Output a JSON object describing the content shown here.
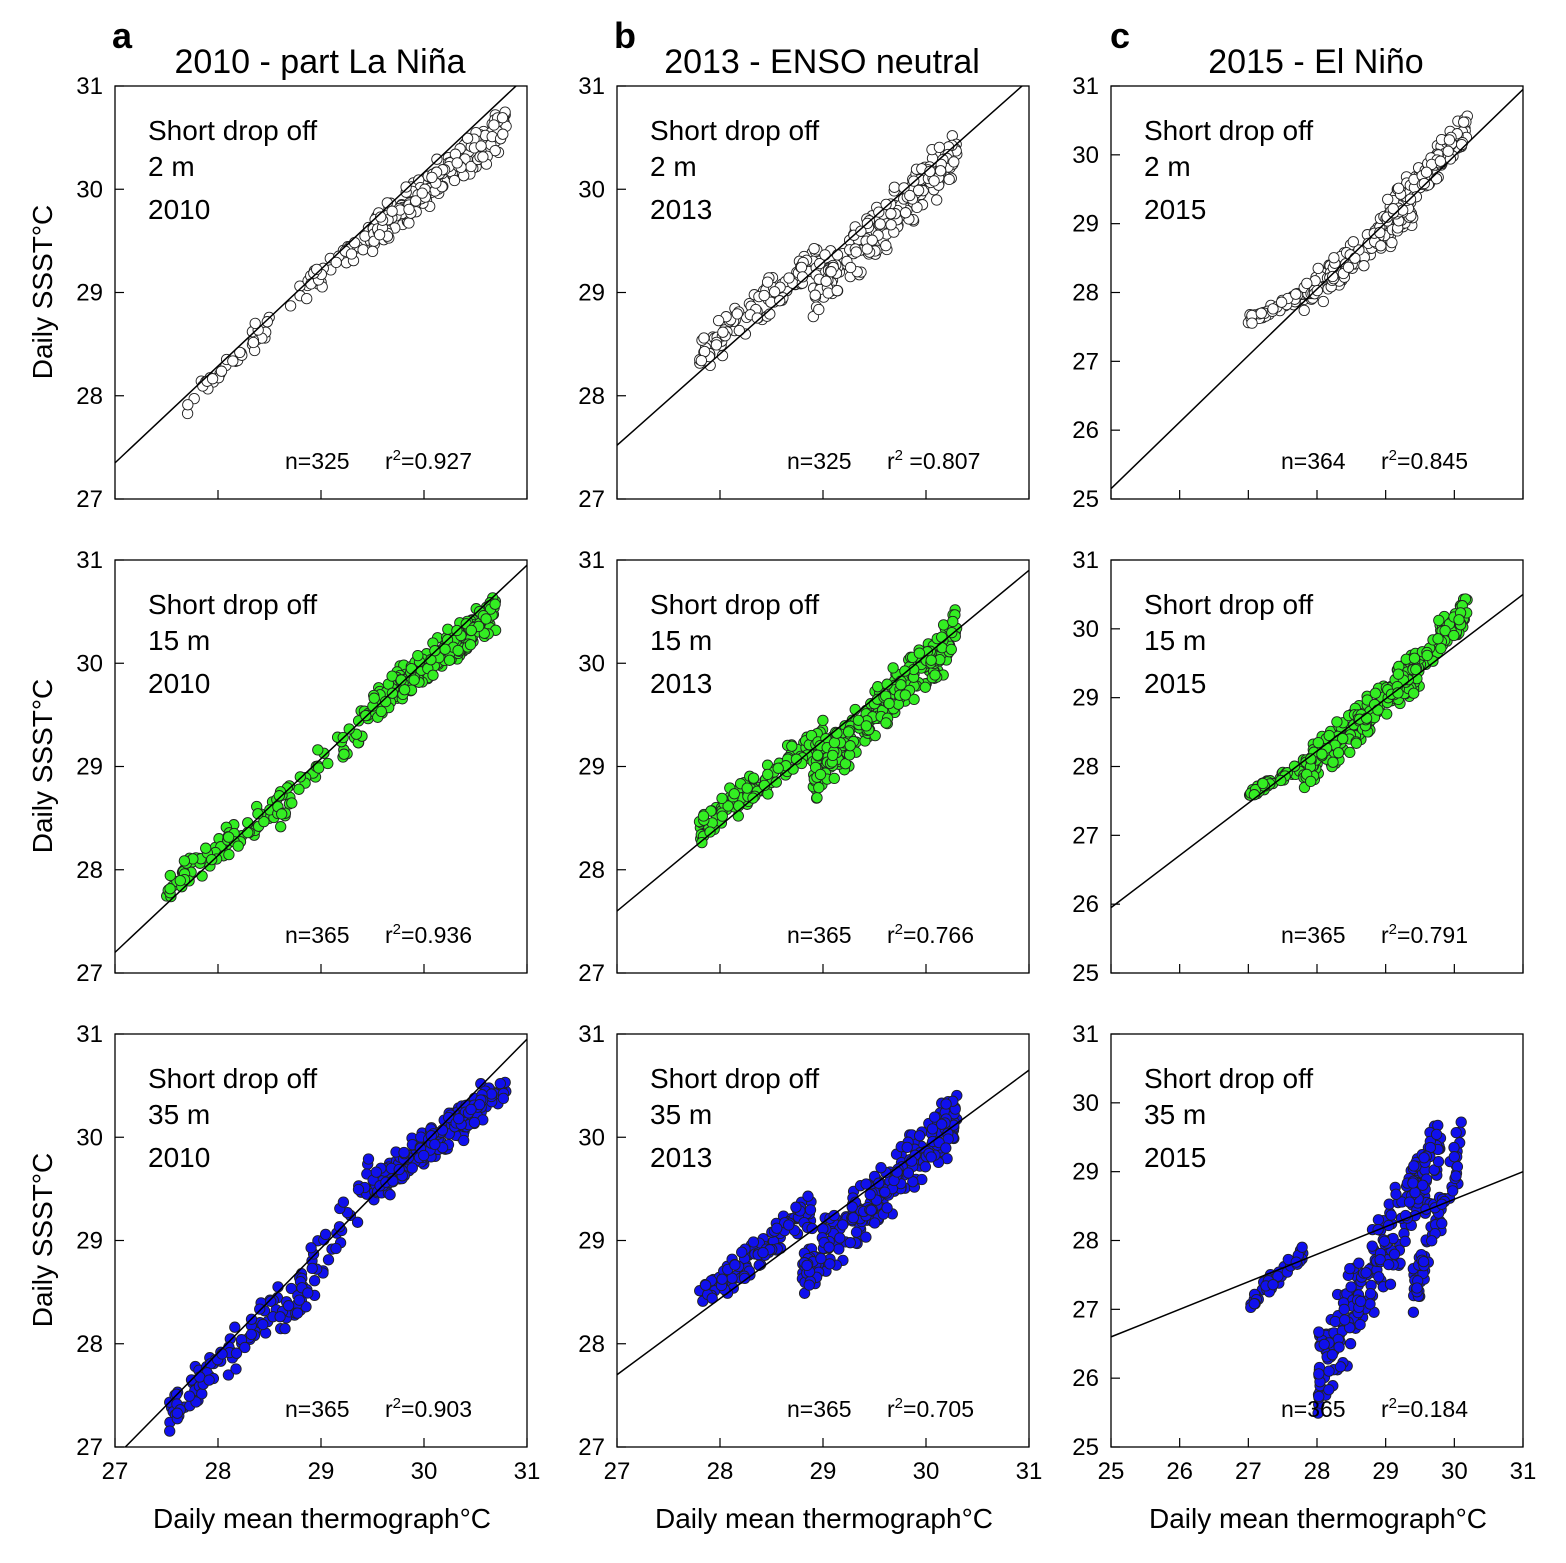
{
  "figure": {
    "columns": [
      {
        "letter": "a",
        "title": "2010 - part La Niña",
        "xlabel": "Daily mean thermograph°C"
      },
      {
        "letter": "b",
        "title": "2013 - ENSO neutral",
        "xlabel": "Daily mean thermograph°C"
      },
      {
        "letter": "c",
        "title": "2015 - El Niño",
        "xlabel": "Daily mean thermograph°C"
      }
    ],
    "ylabel": "Daily SSST°C",
    "colors": {
      "depth_2m": "#ffffff",
      "depth_15m": "#33ee22",
      "depth_35m": "#1010ee",
      "marker_edge": "#222222",
      "line": "#000000"
    }
  },
  "chart_data": [
    {
      "type": "scatter",
      "site": "Short drop off",
      "depth": "2 m",
      "year": "2010",
      "n": "n=325",
      "r2": "0.927",
      "r2_prefix": "r",
      "r2_exp": "2",
      "r2_eq": "=0.927",
      "xlim": [
        27,
        31
      ],
      "ylim": [
        27,
        31
      ],
      "xticks": [
        27,
        28,
        29,
        30,
        31
      ],
      "yticks": [
        27,
        28,
        29,
        30,
        31
      ],
      "fit_line": [
        [
          27,
          27.35
        ],
        [
          31,
          31.1
        ]
      ],
      "clusters": [
        {
          "x": [
            27.7,
            28.5
          ],
          "y": [
            27.9,
            28.7
          ],
          "count": 40
        },
        {
          "x": [
            28.7,
            29.5
          ],
          "y": [
            28.9,
            29.6
          ],
          "count": 45
        },
        {
          "x": [
            29.5,
            30.8
          ],
          "y": [
            29.6,
            30.6
          ],
          "count": 240
        }
      ]
    },
    {
      "type": "scatter",
      "site": "Short drop off",
      "depth": "2 m",
      "year": "2013",
      "n": "n=325",
      "r2": "0.807",
      "r2_prefix": "r",
      "r2_exp": "2",
      "r2_eq": " =0.807",
      "xlim": [
        27,
        31
      ],
      "ylim": [
        27,
        31
      ],
      "xticks": [
        27,
        28,
        29,
        30,
        31
      ],
      "yticks": [
        27,
        28,
        29,
        30,
        31
      ],
      "fit_line": [
        [
          27,
          27.52
        ],
        [
          31,
          31.06
        ]
      ],
      "clusters": [
        {
          "x": [
            27.8,
            29.0
          ],
          "y": [
            28.4,
            29.4
          ],
          "count": 110
        },
        {
          "x": [
            28.9,
            30.3
          ],
          "y": [
            29.0,
            30.35
          ],
          "count": 215
        }
      ]
    },
    {
      "type": "scatter",
      "site": "Short drop off",
      "depth": "2 m",
      "year": "2015",
      "n": "n=364",
      "r2": "0.845",
      "r2_prefix": "r",
      "r2_exp": "2",
      "r2_eq": "=0.845",
      "xlim": [
        25,
        31
      ],
      "ylim": [
        25,
        31
      ],
      "xticks": [
        25,
        26,
        27,
        28,
        29,
        30,
        31
      ],
      "yticks": [
        25,
        26,
        27,
        28,
        29,
        30,
        31
      ],
      "fit_line": [
        [
          25,
          25.15
        ],
        [
          31,
          30.95
        ]
      ],
      "clusters": [
        {
          "x": [
            27.0,
            27.9
          ],
          "y": [
            27.6,
            28.0
          ],
          "count": 60
        },
        {
          "x": [
            27.8,
            29.4
          ],
          "y": [
            27.9,
            29.2
          ],
          "count": 170
        },
        {
          "x": [
            29.0,
            30.2
          ],
          "y": [
            29.1,
            30.4
          ],
          "count": 134
        }
      ]
    },
    {
      "type": "scatter",
      "site": "Short drop off",
      "depth": "15 m",
      "year": "2010",
      "n": "n=365",
      "r2": "0.936",
      "r2_prefix": "r",
      "r2_exp": "2",
      "r2_eq": "=0.936",
      "xlim": [
        27,
        31
      ],
      "ylim": [
        27,
        31
      ],
      "xticks": [
        27,
        28,
        29,
        30,
        31
      ],
      "yticks": [
        27,
        28,
        29,
        30,
        31
      ],
      "fit_line": [
        [
          27,
          27.2
        ],
        [
          31,
          30.95
        ]
      ],
      "clusters": [
        {
          "x": [
            27.5,
            28.5
          ],
          "y": [
            27.8,
            28.6
          ],
          "count": 70
        },
        {
          "x": [
            28.5,
            29.5
          ],
          "y": [
            28.5,
            29.5
          ],
          "count": 55
        },
        {
          "x": [
            29.5,
            30.7
          ],
          "y": [
            29.6,
            30.5
          ],
          "count": 240
        }
      ]
    },
    {
      "type": "scatter",
      "site": "Short drop off",
      "depth": "15 m",
      "year": "2013",
      "n": "n=365",
      "r2": "0.766",
      "r2_prefix": "r",
      "r2_exp": "2",
      "r2_eq": "=0.766",
      "xlim": [
        27,
        31
      ],
      "ylim": [
        27,
        31
      ],
      "xticks": [
        27,
        28,
        29,
        30,
        31
      ],
      "yticks": [
        27,
        28,
        29,
        30,
        31
      ],
      "fit_line": [
        [
          27,
          27.6
        ],
        [
          31,
          30.9
        ]
      ],
      "clusters": [
        {
          "x": [
            27.8,
            29.0
          ],
          "y": [
            28.4,
            29.3
          ],
          "count": 120
        },
        {
          "x": [
            28.9,
            30.3
          ],
          "y": [
            28.9,
            30.3
          ],
          "count": 245
        }
      ]
    },
    {
      "type": "scatter",
      "site": "Short drop off",
      "depth": "15 m",
      "year": "2015",
      "n": "n=365",
      "r2": "0.791",
      "r2_prefix": "r",
      "r2_exp": "2",
      "r2_eq": "=0.791",
      "xlim": [
        25,
        31
      ],
      "ylim": [
        25,
        31
      ],
      "xticks": [
        25,
        26,
        27,
        28,
        29,
        30,
        31
      ],
      "yticks": [
        25,
        26,
        27,
        28,
        29,
        30,
        31
      ],
      "fit_line": [
        [
          25,
          25.95
        ],
        [
          31,
          30.5
        ]
      ],
      "clusters": [
        {
          "x": [
            27.0,
            27.8
          ],
          "y": [
            27.6,
            28.0
          ],
          "count": 55
        },
        {
          "x": [
            27.8,
            29.5
          ],
          "y": [
            27.9,
            29.4
          ],
          "count": 200
        },
        {
          "x": [
            29.0,
            30.2
          ],
          "y": [
            29.1,
            30.3
          ],
          "count": 110
        }
      ]
    },
    {
      "type": "scatter",
      "site": "Short drop off",
      "depth": "35 m",
      "year": "2010",
      "n": "n=365",
      "r2": "0.903",
      "r2_prefix": "r",
      "r2_exp": "2",
      "r2_eq": "=0.903",
      "xlim": [
        27,
        31
      ],
      "ylim": [
        27,
        31
      ],
      "xticks": [
        27,
        28,
        29,
        30,
        31
      ],
      "yticks": [
        27,
        28,
        29,
        30,
        31
      ],
      "fit_line": [
        [
          27.1,
          27
        ],
        [
          31,
          30.95
        ]
      ],
      "clusters": [
        {
          "x": [
            27.5,
            28.6
          ],
          "y": [
            27.3,
            28.4
          ],
          "count": 85
        },
        {
          "x": [
            28.6,
            29.5
          ],
          "y": [
            28.2,
            29.6
          ],
          "count": 60
        },
        {
          "x": [
            29.5,
            30.8
          ],
          "y": [
            29.5,
            30.5
          ],
          "count": 220
        }
      ]
    },
    {
      "type": "scatter",
      "site": "Short drop off",
      "depth": "35 m",
      "year": "2013",
      "n": "n=365",
      "r2": "0.705",
      "r2_prefix": "r",
      "r2_exp": "2",
      "r2_eq": "=0.705",
      "xlim": [
        27,
        31
      ],
      "ylim": [
        27,
        31
      ],
      "xticks": [
        27,
        28,
        29,
        30,
        31
      ],
      "yticks": [
        27,
        28,
        29,
        30,
        31
      ],
      "fit_line": [
        [
          27,
          27.7
        ],
        [
          31,
          30.65
        ]
      ],
      "clusters": [
        {
          "x": [
            27.8,
            28.9
          ],
          "y": [
            28.4,
            29.3
          ],
          "count": 110
        },
        {
          "x": [
            28.8,
            30.3
          ],
          "y": [
            28.7,
            30.2
          ],
          "count": 255
        }
      ]
    },
    {
      "type": "scatter",
      "site": "Short drop off",
      "depth": "35 m",
      "year": "2015",
      "n": "n=365",
      "r2": "0.184",
      "r2_prefix": "r",
      "r2_exp": "2",
      "r2_eq": "=0.184",
      "xlim": [
        25,
        31
      ],
      "ylim": [
        25,
        31
      ],
      "xticks": [
        25,
        26,
        27,
        28,
        29,
        30,
        31
      ],
      "yticks": [
        25,
        26,
        27,
        28,
        29,
        30,
        31
      ],
      "fit_line": [
        [
          25,
          26.6
        ],
        [
          31,
          29.0
        ]
      ],
      "clusters": [
        {
          "x": [
            27.0,
            27.8
          ],
          "y": [
            27.1,
            27.8
          ],
          "count": 45
        },
        {
          "x": [
            28.0,
            29.8
          ],
          "y": [
            26.0,
            29.4
          ],
          "count": 250
        },
        {
          "x": [
            29.4,
            30.1
          ],
          "y": [
            27.2,
            29.4
          ],
          "count": 70
        }
      ]
    }
  ]
}
